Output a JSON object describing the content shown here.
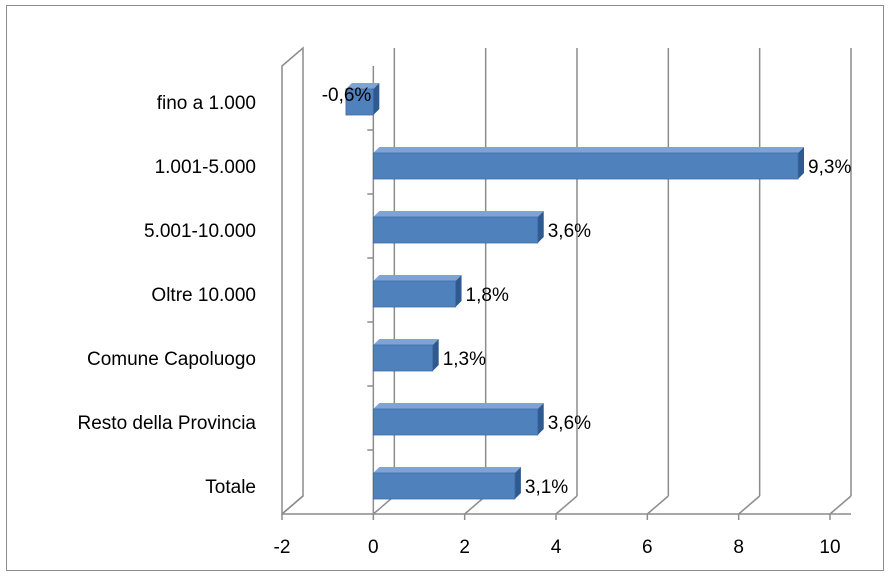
{
  "chart_data": {
    "type": "bar",
    "orientation": "horizontal",
    "three_d": true,
    "categories": [
      "fino a 1.000",
      "1.001-5.000",
      "5.001-10.000",
      "Oltre 10.000",
      "Comune Capoluogo",
      "Resto della Provincia",
      "Totale"
    ],
    "values": [
      -0.6,
      9.3,
      3.6,
      1.8,
      1.3,
      3.6,
      3.1
    ],
    "data_labels": [
      "-0,6%",
      "9,3%",
      "3,6%",
      "1,8%",
      "1,3%",
      "3,6%",
      "3,1%"
    ],
    "x_ticks": [
      "-2",
      "0",
      "2",
      "4",
      "6",
      "8",
      "10"
    ],
    "xlim": [
      -2,
      10
    ],
    "grid": true,
    "legend": "none",
    "title": "",
    "xlabel": "",
    "ylabel": "",
    "colors": {
      "bar_front": "#4f81bd",
      "bar_top": "#7ea3d4",
      "bar_side": "#2f5a8f",
      "grid": "#8c8c8c",
      "frame": "#8c8c8c"
    }
  }
}
